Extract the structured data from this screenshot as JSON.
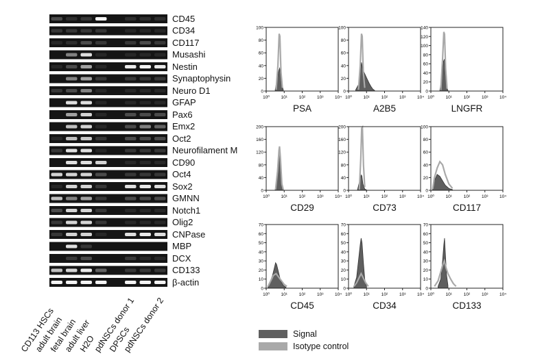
{
  "gel": {
    "genes": [
      "CD45",
      "CD34",
      "CD117",
      "Musashi",
      "Nestin",
      "Synaptophysin",
      "Neuro D1",
      "GFAP",
      "Pax6",
      "Emx2",
      "Oct2",
      "Neurofilament M",
      "CD90",
      "Oct4",
      "Sox2",
      "GMNN",
      "Notch1",
      "Olig2",
      "CNPase",
      "MBP",
      "DCX",
      "CD133",
      "β-actin"
    ],
    "lanes": [
      "CD113 HSCs",
      "adult brain",
      "fetal brain",
      "adult liver",
      "H2O",
      "pdNSCs donor 1",
      "DPSCs",
      "pdNSCs donor 2"
    ],
    "intensity": [
      [
        0.3,
        0.15,
        0.2,
        0.95,
        0,
        0.15,
        0.15,
        0.15
      ],
      [
        0.2,
        0.2,
        0.2,
        0.2,
        0,
        0.1,
        0.1,
        0.1
      ],
      [
        0.1,
        0.15,
        0.3,
        0.2,
        0,
        0.2,
        0.3,
        0.2
      ],
      [
        0,
        0.5,
        0.85,
        0.1,
        0,
        0.1,
        0.1,
        0.1
      ],
      [
        0.1,
        0.3,
        0.6,
        0.1,
        0,
        0.9,
        0.95,
        0.9
      ],
      [
        0,
        0.5,
        0.6,
        0.2,
        0,
        0.2,
        0.2,
        0.2
      ],
      [
        0.2,
        0.3,
        0.5,
        0.1,
        0,
        0.1,
        0.1,
        0.1
      ],
      [
        0,
        0.85,
        0.85,
        0.1,
        0,
        0.1,
        0.1,
        0.1
      ],
      [
        0,
        0.6,
        0.8,
        0.1,
        0,
        0.3,
        0.3,
        0.3
      ],
      [
        0,
        0.7,
        0.8,
        0.1,
        0,
        0.3,
        0.5,
        0.4
      ],
      [
        0.1,
        0.7,
        0.75,
        0.2,
        0,
        0.3,
        0.3,
        0.3
      ],
      [
        0.2,
        0.85,
        0.85,
        0.1,
        0,
        0.2,
        0.2,
        0.2
      ],
      [
        0,
        0.85,
        0.85,
        0.8,
        0,
        0.1,
        0.1,
        0.1
      ],
      [
        0.8,
        0.8,
        0.8,
        0.3,
        0,
        0.2,
        0.2,
        0.2
      ],
      [
        0.1,
        0.8,
        0.8,
        0.2,
        0,
        0.85,
        0.9,
        0.85
      ],
      [
        0.7,
        0.5,
        0.6,
        0.2,
        0,
        0.3,
        0.3,
        0.3
      ],
      [
        0.3,
        0.8,
        0.8,
        0.2,
        0,
        0.1,
        0.1,
        0.1
      ],
      [
        0.2,
        0.8,
        0.8,
        0.2,
        0,
        0.1,
        0.1,
        0.1
      ],
      [
        0.2,
        0.8,
        0.8,
        0.1,
        0,
        0.85,
        0.9,
        0.85
      ],
      [
        0,
        0.85,
        0.2,
        0,
        0,
        0,
        0,
        0
      ],
      [
        0,
        0.2,
        0.3,
        0,
        0,
        0.2,
        0.1,
        0.1
      ],
      [
        0.7,
        0.8,
        0.9,
        0.4,
        0,
        0.2,
        0.2,
        0.2
      ],
      [
        0.95,
        0.95,
        0.95,
        0.95,
        0,
        0.95,
        0.95,
        0.95
      ]
    ]
  },
  "flow": {
    "panels": [
      {
        "title": "PSA",
        "yticks": [
          "0",
          "20",
          "40",
          "60",
          "80",
          "100"
        ],
        "ymax": 100,
        "signal": [
          [
            0.5,
            2
          ],
          [
            0.62,
            20
          ],
          [
            0.7,
            32
          ],
          [
            0.75,
            36
          ],
          [
            0.8,
            28
          ],
          [
            0.86,
            10
          ],
          [
            0.95,
            2
          ]
        ],
        "isotype": [
          [
            0.55,
            2
          ],
          [
            0.65,
            40
          ],
          [
            0.72,
            90
          ],
          [
            0.76,
            86
          ],
          [
            0.82,
            30
          ],
          [
            0.9,
            5
          ]
        ]
      },
      {
        "title": "A2B5",
        "yticks": [
          "0",
          "20",
          "40",
          "60",
          "80",
          "100"
        ],
        "ymax": 100,
        "signal": [
          [
            0.4,
            2
          ],
          [
            0.55,
            10
          ],
          [
            0.65,
            30
          ],
          [
            0.72,
            45
          ],
          [
            0.78,
            36
          ],
          [
            0.85,
            30
          ],
          [
            0.95,
            24
          ],
          [
            1.05,
            18
          ],
          [
            1.15,
            12
          ],
          [
            1.25,
            7
          ],
          [
            1.35,
            3
          ],
          [
            1.45,
            1
          ]
        ],
        "isotype": [
          [
            0.55,
            2
          ],
          [
            0.65,
            40
          ],
          [
            0.72,
            90
          ],
          [
            0.76,
            86
          ],
          [
            0.82,
            30
          ],
          [
            0.9,
            5
          ]
        ]
      },
      {
        "title": "LNGFR",
        "yticks": [
          "0",
          "20",
          "40",
          "60",
          "80",
          "100",
          "120",
          "140"
        ],
        "ymax": 140,
        "signal": [
          [
            0.5,
            2
          ],
          [
            0.62,
            30
          ],
          [
            0.7,
            65
          ],
          [
            0.75,
            70
          ],
          [
            0.8,
            40
          ],
          [
            0.88,
            8
          ],
          [
            0.95,
            1
          ]
        ],
        "isotype": [
          [
            0.55,
            2
          ],
          [
            0.65,
            70
          ],
          [
            0.72,
            130
          ],
          [
            0.76,
            125
          ],
          [
            0.82,
            50
          ],
          [
            0.9,
            5
          ]
        ]
      },
      {
        "title": "CD29",
        "yticks": [
          "0",
          "40",
          "80",
          "120",
          "160",
          "200"
        ],
        "ymax": 200,
        "signal": [
          [
            0.5,
            2
          ],
          [
            0.62,
            50
          ],
          [
            0.7,
            120
          ],
          [
            0.74,
            135
          ],
          [
            0.78,
            110
          ],
          [
            0.85,
            30
          ],
          [
            0.95,
            2
          ]
        ],
        "isotype": [
          [
            0.52,
            2
          ],
          [
            0.63,
            60
          ],
          [
            0.71,
            125
          ],
          [
            0.74,
            138
          ],
          [
            0.79,
            100
          ],
          [
            0.87,
            20
          ],
          [
            0.95,
            2
          ]
        ]
      },
      {
        "title": "CD73",
        "yticks": [
          "0",
          "40",
          "80",
          "120",
          "160",
          "200"
        ],
        "ymax": 200,
        "signal": [
          [
            0.5,
            2
          ],
          [
            0.62,
            30
          ],
          [
            0.7,
            48
          ],
          [
            0.74,
            45
          ],
          [
            0.8,
            20
          ],
          [
            0.9,
            4
          ],
          [
            1.0,
            1
          ]
        ],
        "isotype": [
          [
            0.6,
            2
          ],
          [
            0.68,
            100
          ],
          [
            0.73,
            195
          ],
          [
            0.77,
            198
          ],
          [
            0.83,
            80
          ],
          [
            0.9,
            10
          ]
        ]
      },
      {
        "title": "CD117",
        "yticks": [
          "0",
          "20",
          "40",
          "60",
          "80",
          "100"
        ],
        "ymax": 100,
        "signal": [
          [
            0.1,
            2
          ],
          [
            0.2,
            15
          ],
          [
            0.35,
            25
          ],
          [
            0.5,
            22
          ],
          [
            0.65,
            15
          ],
          [
            0.8,
            8
          ],
          [
            1.0,
            3
          ],
          [
            1.2,
            1
          ]
        ],
        "isotype": [
          [
            0.1,
            2
          ],
          [
            0.2,
            20
          ],
          [
            0.35,
            35
          ],
          [
            0.5,
            45
          ],
          [
            0.65,
            40
          ],
          [
            0.8,
            25
          ],
          [
            1.0,
            10
          ],
          [
            1.2,
            3
          ]
        ]
      },
      {
        "title": "CD45",
        "yticks": [
          "0",
          "10",
          "20",
          "30",
          "40",
          "50",
          "60",
          "70"
        ],
        "ymax": 70,
        "signal": [
          [
            0.1,
            2
          ],
          [
            0.2,
            6
          ],
          [
            0.35,
            14
          ],
          [
            0.45,
            22
          ],
          [
            0.52,
            28
          ],
          [
            0.58,
            26
          ],
          [
            0.68,
            18
          ],
          [
            0.8,
            8
          ],
          [
            0.95,
            3
          ],
          [
            1.1,
            1
          ]
        ],
        "isotype": [
          [
            0.1,
            2
          ],
          [
            0.25,
            8
          ],
          [
            0.4,
            14
          ],
          [
            0.55,
            16
          ],
          [
            0.7,
            12
          ],
          [
            0.85,
            8
          ],
          [
            1.0,
            4
          ],
          [
            1.15,
            2
          ]
        ]
      },
      {
        "title": "CD34",
        "yticks": [
          "0",
          "10",
          "20",
          "30",
          "40",
          "50",
          "60",
          "70"
        ],
        "ymax": 70,
        "signal": [
          [
            0.3,
            2
          ],
          [
            0.45,
            12
          ],
          [
            0.55,
            30
          ],
          [
            0.65,
            48
          ],
          [
            0.7,
            55
          ],
          [
            0.75,
            50
          ],
          [
            0.82,
            30
          ],
          [
            0.9,
            10
          ],
          [
            1.0,
            2
          ]
        ],
        "isotype": [
          [
            0.3,
            2
          ],
          [
            0.45,
            6
          ],
          [
            0.6,
            12
          ],
          [
            0.7,
            16
          ],
          [
            0.8,
            12
          ],
          [
            0.95,
            6
          ],
          [
            1.1,
            2
          ]
        ]
      },
      {
        "title": "CD133",
        "yticks": [
          "0",
          "10",
          "20",
          "30",
          "40",
          "50",
          "60",
          "70"
        ],
        "ymax": 70,
        "signal": [
          [
            0.4,
            2
          ],
          [
            0.55,
            10
          ],
          [
            0.65,
            30
          ],
          [
            0.72,
            48
          ],
          [
            0.76,
            55
          ],
          [
            0.8,
            40
          ],
          [
            0.87,
            15
          ],
          [
            0.95,
            3
          ]
        ],
        "isotype": [
          [
            0.2,
            2
          ],
          [
            0.4,
            8
          ],
          [
            0.55,
            18
          ],
          [
            0.65,
            25
          ],
          [
            0.75,
            30
          ],
          [
            0.85,
            22
          ],
          [
            0.95,
            16
          ],
          [
            1.1,
            10
          ],
          [
            1.25,
            5
          ],
          [
            1.4,
            2
          ]
        ]
      }
    ],
    "xticks": [
      "10⁰",
      "10¹",
      "10²",
      "10³",
      "10⁴"
    ]
  },
  "legend": {
    "signal_label": "Signal",
    "isotype_label": "Isotype control",
    "signal_color": "#5f5f5f",
    "isotype_color": "#a9a9a9"
  }
}
